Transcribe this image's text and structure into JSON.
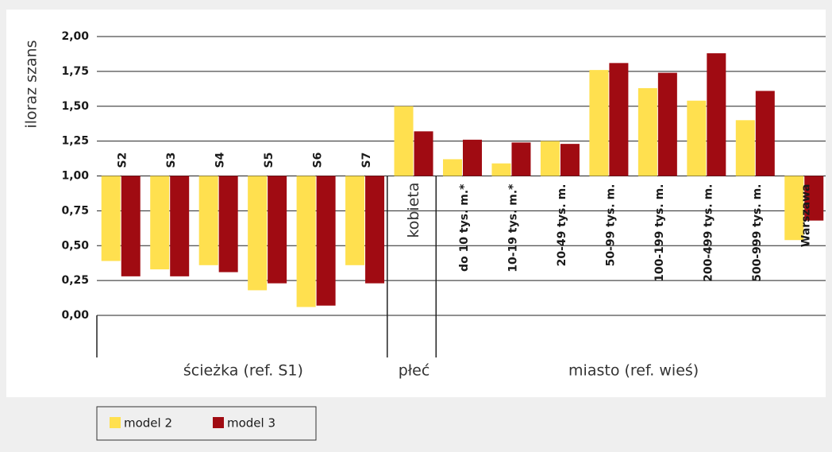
{
  "chart_data": {
    "type": "bar",
    "baseline": 1,
    "y_label": "iloraz szans",
    "groups": [
      {
        "name": "ścieżka (ref. S1)",
        "categories": [
          "S2",
          "S3",
          "S4",
          "S5",
          "S6",
          "S7"
        ]
      },
      {
        "name": "płeć",
        "categories": [
          "kobieta"
        ]
      },
      {
        "name": "miasto (ref. wieś)",
        "categories": [
          "do 10 tys. m.*",
          "10-19 tys. m.*",
          "20-49 tys. m.",
          "50-99 tys. m.",
          "100-199 tys. m.",
          "200-499 tys. m.",
          "500-999 tys. m.",
          "Warszawa"
        ]
      }
    ],
    "series": [
      {
        "name": "model 2",
        "color": "#ffe04f",
        "values": [
          0.39,
          0.33,
          0.36,
          0.18,
          0.06,
          0.36,
          1.5,
          1.12,
          1.09,
          1.25,
          1.76,
          1.63,
          1.54,
          1.4,
          0.54
        ]
      },
      {
        "name": "model 3",
        "color": "#a00b12",
        "values": [
          0.28,
          0.28,
          0.31,
          0.23,
          0.07,
          0.23,
          1.32,
          1.26,
          1.24,
          1.23,
          1.81,
          1.74,
          1.88,
          1.61,
          0.68
        ]
      }
    ],
    "ylim": [
      0,
      2
    ],
    "yticks": [
      {
        "value": 0,
        "label": "0,00"
      },
      {
        "value": 0.25,
        "label": "0,25"
      },
      {
        "value": 0.5,
        "label": "0,50"
      },
      {
        "value": 0.75,
        "label": "0,75"
      },
      {
        "value": 1,
        "label": "1,00"
      },
      {
        "value": 1.25,
        "label": "1,25"
      },
      {
        "value": 1.5,
        "label": "1,50"
      },
      {
        "value": 1.75,
        "label": "1,75"
      },
      {
        "value": 2,
        "label": "2,00"
      }
    ],
    "grid": true
  }
}
